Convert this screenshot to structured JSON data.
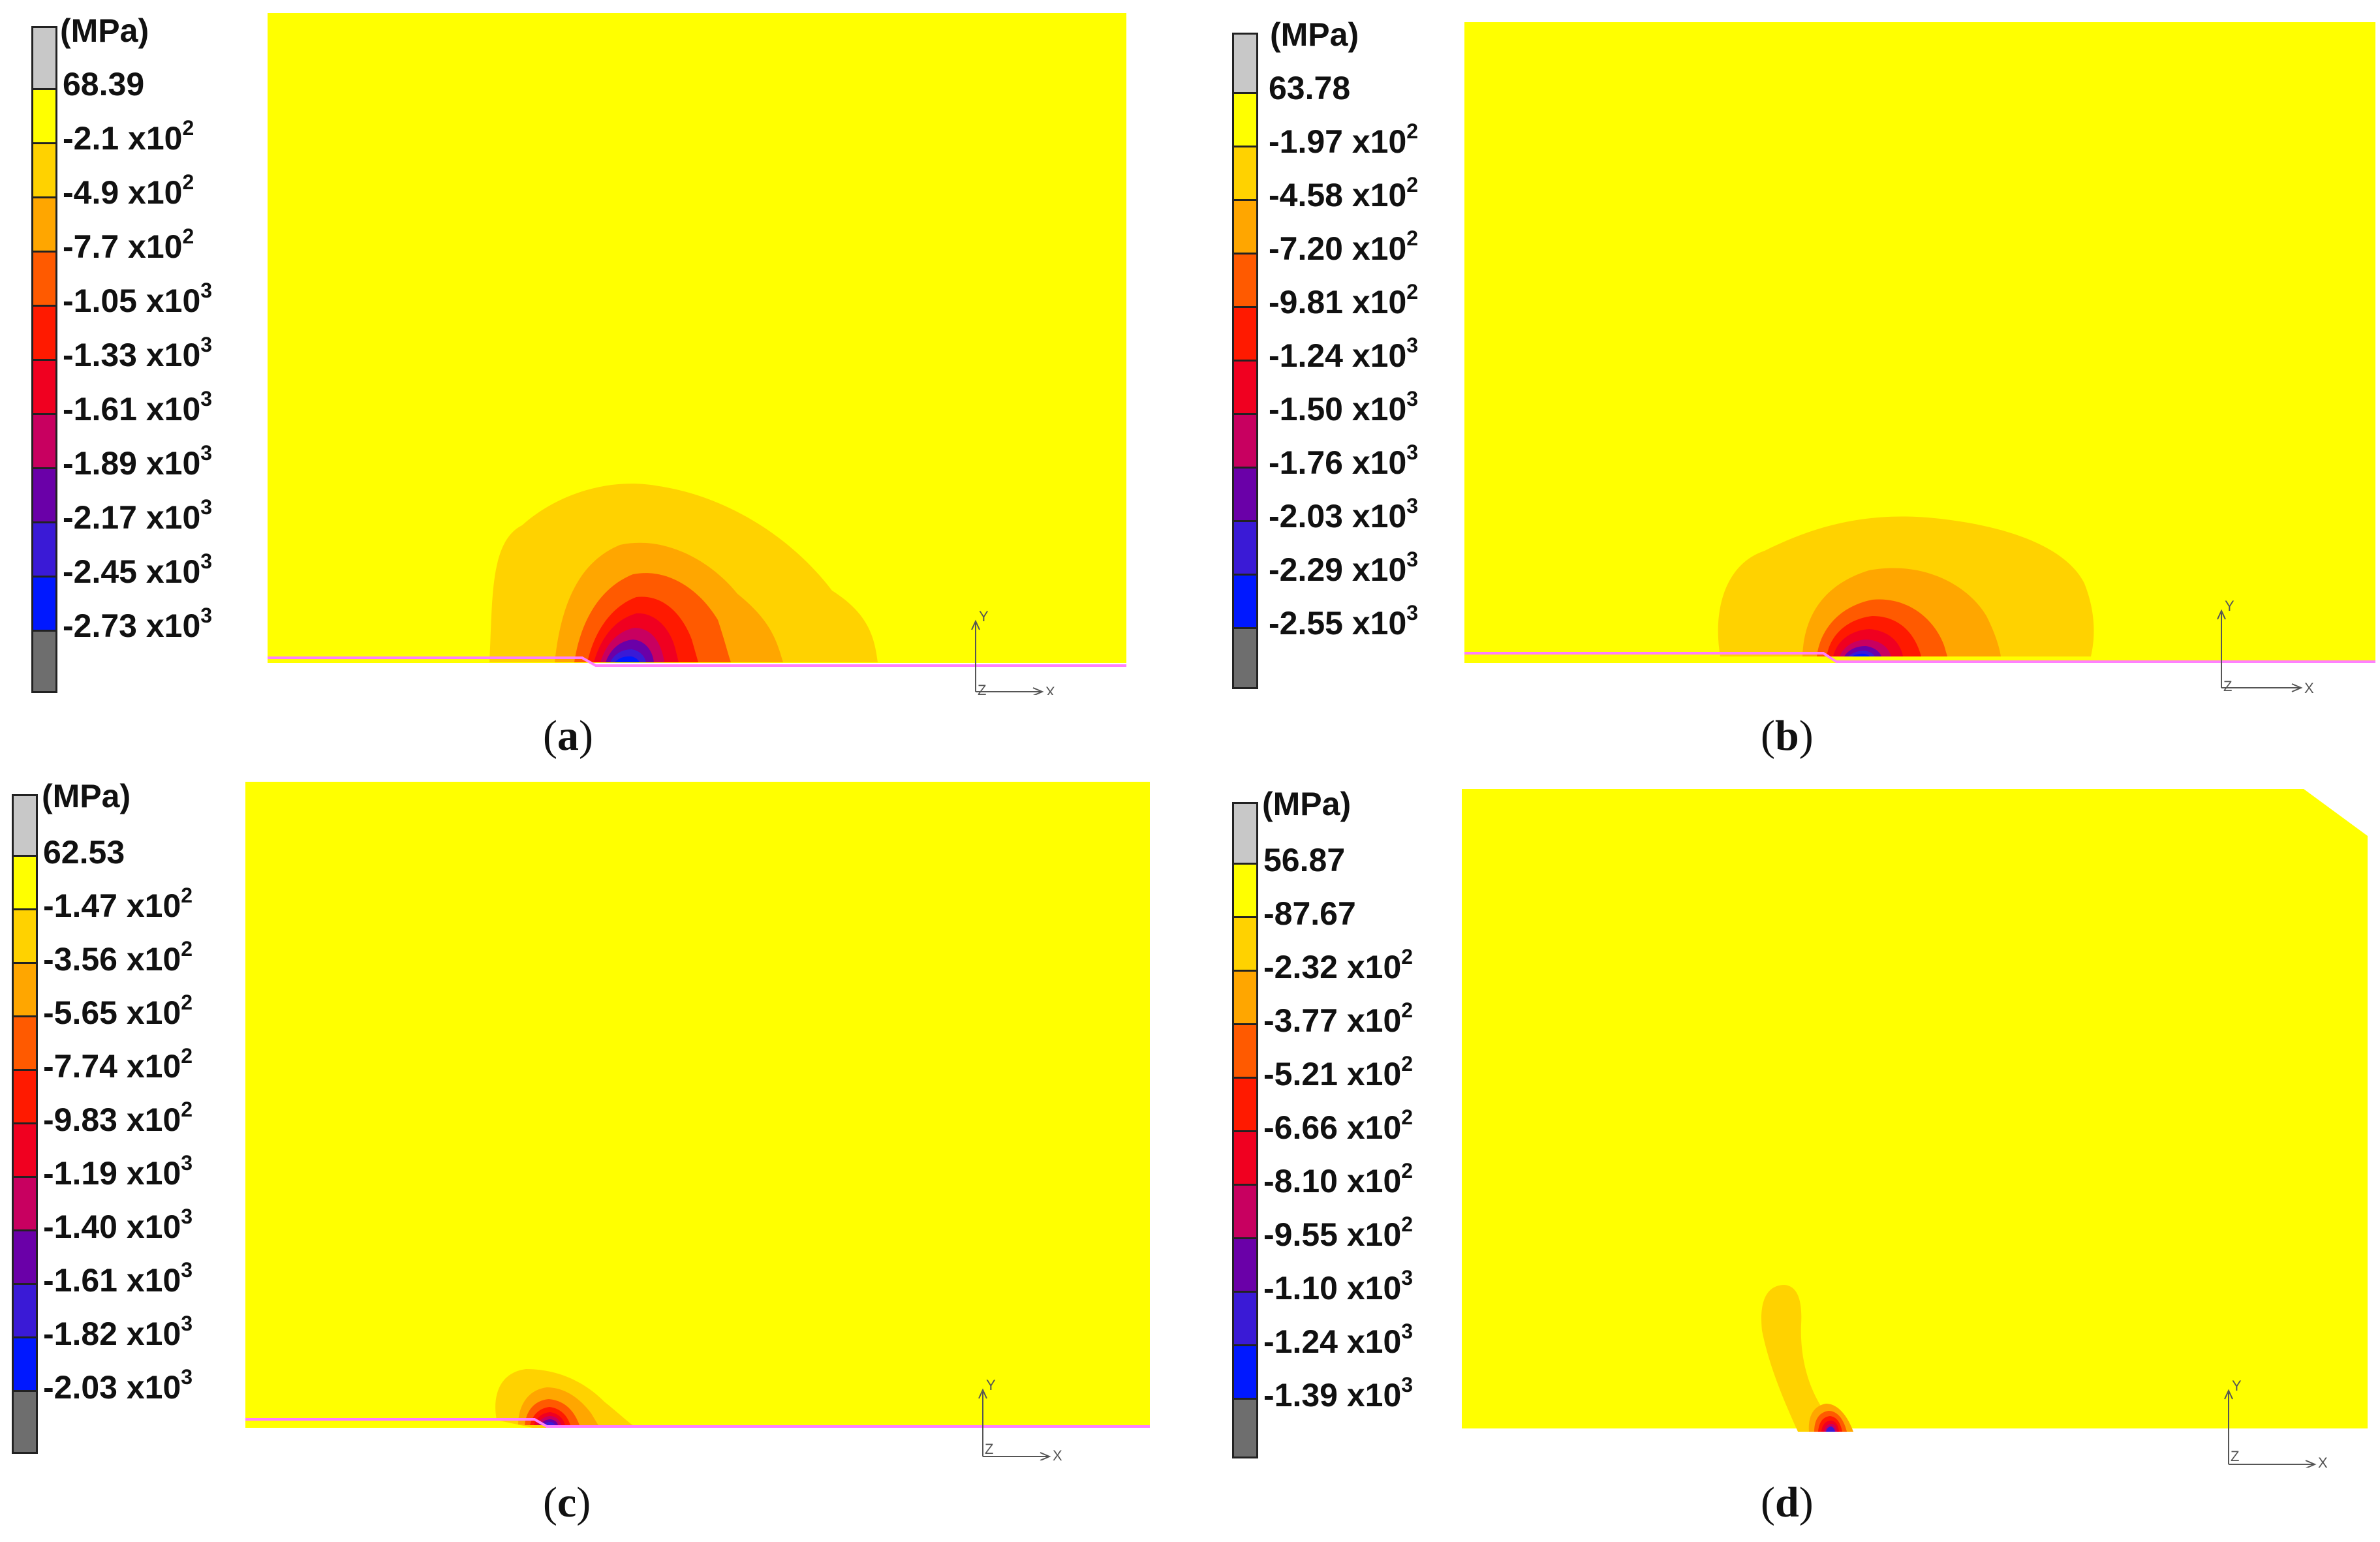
{
  "colors": {
    "band_0": "#c8c8c8",
    "band_1": "#ffff00",
    "band_2": "#ffd200",
    "band_3": "#ffa600",
    "band_4": "#ff5a00",
    "band_5": "#ff1a00",
    "band_6": "#f00020",
    "band_7": "#c80060",
    "band_8": "#6a00a8",
    "band_9": "#3a1ad6",
    "band_10": "#0018ff",
    "band_11": "#6e6e6e",
    "field_background": "#ffff00",
    "surface_line": "#ff80ff"
  },
  "panels": [
    {
      "unit": "(MPa)",
      "caption_open": "(",
      "caption_letter": "a",
      "caption_close": ")",
      "legend": [
        {
          "mant": "68.39",
          "exp": ""
        },
        {
          "mant": "-2.1 x10",
          "exp": "2"
        },
        {
          "mant": "-4.9 x10",
          "exp": "2"
        },
        {
          "mant": "-7.7 x10",
          "exp": "2"
        },
        {
          "mant": "-1.05 x10",
          "exp": "3"
        },
        {
          "mant": "-1.33 x10",
          "exp": "3"
        },
        {
          "mant": "-1.61 x10",
          "exp": "3"
        },
        {
          "mant": "-1.89 x10",
          "exp": "3"
        },
        {
          "mant": "-2.17 x10",
          "exp": "3"
        },
        {
          "mant": "-2.45 x10",
          "exp": "3"
        },
        {
          "mant": "-2.73 x10",
          "exp": "3"
        }
      ],
      "axis_y": "Y",
      "axis_x": "X",
      "axis_z": "Z"
    },
    {
      "unit": "(MPa)",
      "caption_open": "(",
      "caption_letter": "b",
      "caption_close": ")",
      "legend": [
        {
          "mant": "63.78",
          "exp": ""
        },
        {
          "mant": "-1.97 x10",
          "exp": "2"
        },
        {
          "mant": "-4.58 x10",
          "exp": "2"
        },
        {
          "mant": "-7.20 x10",
          "exp": "2"
        },
        {
          "mant": "-9.81 x10",
          "exp": "2"
        },
        {
          "mant": "-1.24 x10",
          "exp": "3"
        },
        {
          "mant": "-1.50 x10",
          "exp": "3"
        },
        {
          "mant": "-1.76 x10",
          "exp": "3"
        },
        {
          "mant": "-2.03 x10",
          "exp": "3"
        },
        {
          "mant": "-2.29 x10",
          "exp": "3"
        },
        {
          "mant": "-2.55 x10",
          "exp": "3"
        }
      ],
      "axis_y": "Y",
      "axis_x": "X",
      "axis_z": "Z"
    },
    {
      "unit": "(MPa)",
      "caption_open": "(",
      "caption_letter": "c",
      "caption_close": ")",
      "legend": [
        {
          "mant": "62.53",
          "exp": ""
        },
        {
          "mant": "-1.47 x10",
          "exp": "2"
        },
        {
          "mant": "-3.56 x10",
          "exp": "2"
        },
        {
          "mant": "-5.65 x10",
          "exp": "2"
        },
        {
          "mant": "-7.74 x10",
          "exp": "2"
        },
        {
          "mant": "-9.83 x10",
          "exp": "2"
        },
        {
          "mant": "-1.19 x10",
          "exp": "3"
        },
        {
          "mant": "-1.40 x10",
          "exp": "3"
        },
        {
          "mant": "-1.61 x10",
          "exp": "3"
        },
        {
          "mant": "-1.82 x10",
          "exp": "3"
        },
        {
          "mant": "-2.03 x10",
          "exp": "3"
        }
      ],
      "axis_y": "Y",
      "axis_x": "X",
      "axis_z": "Z"
    },
    {
      "unit": "(MPa)",
      "caption_open": "(",
      "caption_letter": "d",
      "caption_close": ")",
      "legend": [
        {
          "mant": "56.87",
          "exp": ""
        },
        {
          "mant": "-87.67",
          "exp": ""
        },
        {
          "mant": "-2.32 x10",
          "exp": "2"
        },
        {
          "mant": "-3.77 x10",
          "exp": "2"
        },
        {
          "mant": "-5.21 x10",
          "exp": "2"
        },
        {
          "mant": "-6.66 x10",
          "exp": "2"
        },
        {
          "mant": "-8.10 x10",
          "exp": "2"
        },
        {
          "mant": "-9.55 x10",
          "exp": "2"
        },
        {
          "mant": "-1.10 x10",
          "exp": "3"
        },
        {
          "mant": "-1.24 x10",
          "exp": "3"
        },
        {
          "mant": "-1.39 x10",
          "exp": "3"
        }
      ],
      "axis_y": "Y",
      "axis_x": "X",
      "axis_z": "Z"
    }
  ]
}
